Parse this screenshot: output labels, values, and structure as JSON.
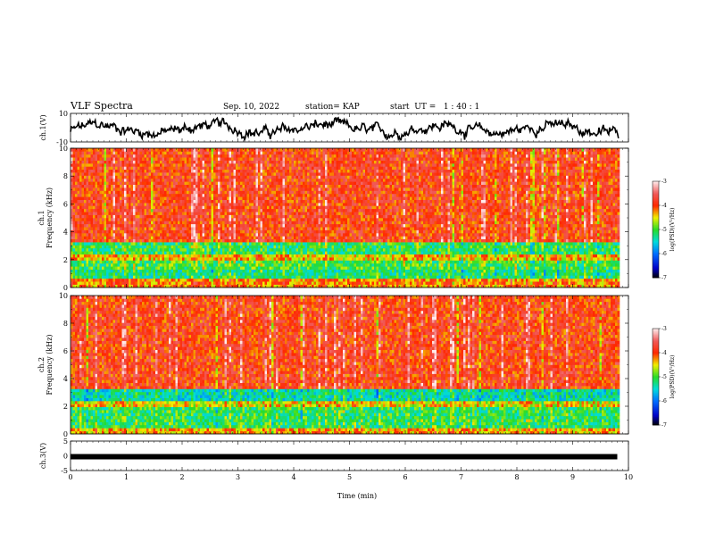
{
  "header": {
    "title": "VLF Spectra",
    "date": "Sep. 10, 2022",
    "station": "station= KAP",
    "start": "start  UT =   1 : 40 : 1"
  },
  "chart_data": [
    {
      "type": "line",
      "name": "ch1-waveform",
      "ylabel": "ch.1(V)",
      "ylim": [
        -10,
        10
      ],
      "yticks": [
        "10",
        "-10"
      ],
      "xlim": [
        0,
        10
      ]
    },
    {
      "type": "heatmap",
      "name": "ch1-spectrogram",
      "ylabel": "ch.1\nFrequency (kHz)",
      "ylabel_lines": [
        "ch.1",
        "Frequency (kHz)"
      ],
      "ylim": [
        0,
        10
      ],
      "yticks": [
        "0",
        "2",
        "4",
        "6",
        "8",
        "10"
      ],
      "xlim": [
        0,
        10
      ],
      "colorbar": {
        "label": "log(PSD)(V²/Hz)",
        "ticks": [
          "-3",
          "-4",
          "-5",
          "-6",
          "-7"
        ],
        "range": [
          -7,
          -3
        ]
      },
      "bands": [
        {
          "f_low": 0,
          "f_high": 0.6,
          "level": -4.2
        },
        {
          "f_low": 0.6,
          "f_high": 1.2,
          "level": -5.2
        },
        {
          "f_low": 1.2,
          "f_high": 2.0,
          "level": -5.0
        },
        {
          "f_low": 2.0,
          "f_high": 2.5,
          "level": -4.4
        },
        {
          "f_low": 2.5,
          "f_high": 3.3,
          "level": -5.1
        },
        {
          "f_low": 3.3,
          "f_high": 10,
          "level": -3.9
        }
      ]
    },
    {
      "type": "heatmap",
      "name": "ch2-spectrogram",
      "ylabel": "ch.2\nFrequency (kHz)",
      "ylabel_lines": [
        "ch.2",
        "Frequency (kHz)"
      ],
      "ylim": [
        0,
        10
      ],
      "yticks": [
        "0",
        "2",
        "4",
        "6",
        "8",
        "10"
      ],
      "xlim": [
        0,
        10
      ],
      "colorbar": {
        "label": "log(PSD)(V²/Hz)",
        "ticks": [
          "-3",
          "-4",
          "-5",
          "-6",
          "-7"
        ],
        "range": [
          -7,
          -3
        ]
      },
      "bands": [
        {
          "f_low": 0,
          "f_high": 0.5,
          "level": -4.3
        },
        {
          "f_low": 0.5,
          "f_high": 1.9,
          "level": -5.1
        },
        {
          "f_low": 1.9,
          "f_high": 2.3,
          "level": -4.5
        },
        {
          "f_low": 2.3,
          "f_high": 3.2,
          "level": -5.4
        },
        {
          "f_low": 3.2,
          "f_high": 10,
          "level": -3.9
        }
      ]
    },
    {
      "type": "line",
      "name": "ch3-waveform",
      "ylabel": "ch.3(V)",
      "ylim": [
        -5,
        5
      ],
      "yticks": [
        "5",
        "0",
        "-5"
      ],
      "xlim": [
        0,
        10
      ],
      "level": -0.3,
      "xlabel": "Time (min)",
      "xticks": [
        "0",
        "1",
        "2",
        "3",
        "4",
        "5",
        "6",
        "7",
        "8",
        "9",
        "10"
      ],
      "data_end_min": 9.8
    }
  ]
}
